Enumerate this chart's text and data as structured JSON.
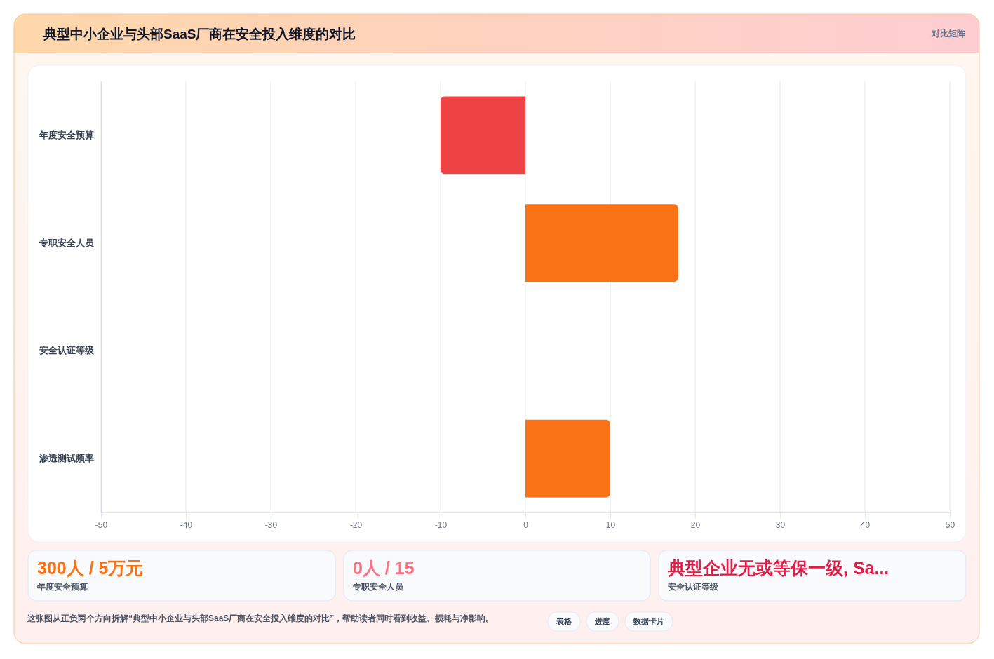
{
  "chart_data": {
    "type": "bar",
    "orientation": "horizontal",
    "title": "典型中小企业与头部SaaS厂商在安全投入维度的对比",
    "categories": [
      "年度安全预算",
      "专职安全人员",
      "安全认证等级",
      "渗透测试频率"
    ],
    "values": [
      -10,
      18,
      null,
      10
    ],
    "colors": [
      "#ef4444",
      "#f97316",
      "#f97316",
      "#f97316"
    ],
    "xlim": [
      -50,
      50
    ],
    "xticks": [
      -50,
      -40,
      -30,
      -20,
      -10,
      0,
      10,
      20,
      30,
      40,
      50
    ],
    "grid": "x",
    "annotations": [
      "对比矩阵",
      "300人 / 5万元",
      "年度安全预算",
      "0人 / 15",
      "专职安全人员",
      "典型企业无或等保一级, Sa...",
      "安全认证等级",
      "这张图从正负两个方向拆解“典型中小企业与头部SaaS厂商在安全投入维度的对比”，帮助读者同时看到收益、损耗与净影响。",
      "表格",
      "进度",
      "数据卡片"
    ]
  }
}
